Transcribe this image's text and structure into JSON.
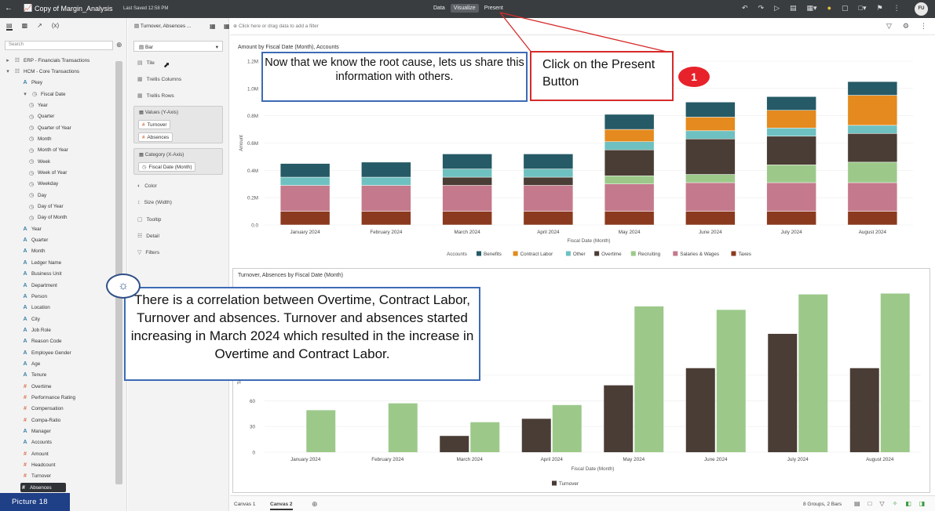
{
  "topbar": {
    "back_icon": "back-arrow-icon",
    "title": "Copy of Margin_Analysis",
    "saved": "Last Saved 12:58 PM",
    "modes": [
      "Data",
      "Visualize",
      "Present"
    ],
    "active_mode": "Visualize",
    "avatar": "FU"
  },
  "left_panel": {
    "search_placeholder": "Search",
    "items": [
      {
        "label": "ERP - Financials Transactions",
        "type": "folder",
        "level": 0
      },
      {
        "label": "HCM - Core Transactions",
        "type": "folder",
        "level": 0
      },
      {
        "label": "Pkey",
        "type": "attr",
        "level": 1
      },
      {
        "label": "Fiscal Date",
        "type": "time",
        "level": 1
      },
      {
        "label": "Year",
        "type": "time",
        "level": 2
      },
      {
        "label": "Quarter",
        "type": "time",
        "level": 2
      },
      {
        "label": "Quarter of Year",
        "type": "time",
        "level": 2
      },
      {
        "label": "Month",
        "type": "time",
        "level": 2
      },
      {
        "label": "Month of Year",
        "type": "time",
        "level": 2
      },
      {
        "label": "Week",
        "type": "time",
        "level": 2
      },
      {
        "label": "Week of Year",
        "type": "time",
        "level": 2
      },
      {
        "label": "Weekday",
        "type": "time",
        "level": 2
      },
      {
        "label": "Day",
        "type": "time",
        "level": 2
      },
      {
        "label": "Day of Year",
        "type": "time",
        "level": 2
      },
      {
        "label": "Day of Month",
        "type": "time",
        "level": 2
      },
      {
        "label": "Year",
        "type": "attr",
        "level": 1
      },
      {
        "label": "Quarter",
        "type": "attr",
        "level": 1
      },
      {
        "label": "Month",
        "type": "attr",
        "level": 1
      },
      {
        "label": "Ledger Name",
        "type": "attr",
        "level": 1
      },
      {
        "label": "Business Unit",
        "type": "attr",
        "level": 1
      },
      {
        "label": "Department",
        "type": "attr",
        "level": 1
      },
      {
        "label": "Person",
        "type": "attr",
        "level": 1
      },
      {
        "label": "Location",
        "type": "attr",
        "level": 1
      },
      {
        "label": "City",
        "type": "attr",
        "level": 1
      },
      {
        "label": "Job Role",
        "type": "attr",
        "level": 1
      },
      {
        "label": "Reason Code",
        "type": "attr",
        "level": 1
      },
      {
        "label": "Employee Gender",
        "type": "attr",
        "level": 1
      },
      {
        "label": "Age",
        "type": "attr",
        "level": 1
      },
      {
        "label": "Tenure",
        "type": "attr",
        "level": 1
      },
      {
        "label": "Overtime",
        "type": "meas",
        "level": 1
      },
      {
        "label": "Performance Rating",
        "type": "meas",
        "level": 1
      },
      {
        "label": "Compensation",
        "type": "meas",
        "level": 1
      },
      {
        "label": "Compa-Ratio",
        "type": "meas",
        "level": 1
      },
      {
        "label": "Manager",
        "type": "attr",
        "level": 1
      },
      {
        "label": "Accounts",
        "type": "attr",
        "level": 1
      },
      {
        "label": "Amount",
        "type": "meas",
        "level": 1
      },
      {
        "label": "Headcount",
        "type": "meas",
        "level": 1
      },
      {
        "label": "Turnover",
        "type": "meas",
        "level": 1
      },
      {
        "label": "Absences",
        "type": "meas",
        "level": 1,
        "selected": true
      }
    ]
  },
  "grammar": {
    "header": "Turnover, Absences ...",
    "viz_type": "Bar",
    "tile": "Tile",
    "trellis_columns": "Trellis Columns",
    "trellis_rows": "Trellis Rows",
    "values_title": "Values (Y-Axis)",
    "values": [
      "Turnover",
      "Absences"
    ],
    "category_title": "Category (X-Axis)",
    "category": "Fiscal Date (Month)",
    "color": "Color",
    "size": "Size (Width)",
    "tooltip": "Tooltip",
    "detail": "Detail",
    "filters": "Filters"
  },
  "filter_bar": {
    "placeholder": "Click here or drag data to add a filter"
  },
  "chart1": {
    "chart_data": {
      "type": "bar",
      "stacked": true,
      "title": "Amount by Fiscal Date (Month), Accounts",
      "xlabel": "Fiscal Date (Month)",
      "ylabel": "Amount",
      "ylim": [
        0,
        1200000
      ],
      "yticks": [
        "0.0",
        "0.2M",
        "0.4M",
        "0.6M",
        "0.8M",
        "1.0M",
        "1.2M"
      ],
      "legend_title": "Accounts",
      "legend_position": "bottom",
      "categories": [
        "January 2024",
        "February 2024",
        "March 2024",
        "April 2024",
        "May 2024",
        "June 2024",
        "July 2024",
        "August 2024"
      ],
      "series": [
        {
          "name": "Taxes",
          "color": "#8b3a1f",
          "values": [
            100000,
            100000,
            100000,
            100000,
            100000,
            100000,
            100000,
            100000
          ]
        },
        {
          "name": "Salaries & Wages",
          "color": "#c47a8c",
          "values": [
            190000,
            190000,
            190000,
            190000,
            200000,
            210000,
            210000,
            210000
          ]
        },
        {
          "name": "Recruiting",
          "color": "#9cc98a",
          "values": [
            0,
            0,
            0,
            0,
            60000,
            60000,
            130000,
            150000
          ]
        },
        {
          "name": "Overtime",
          "color": "#4a3d35",
          "values": [
            0,
            0,
            60000,
            60000,
            190000,
            260000,
            210000,
            210000
          ]
        },
        {
          "name": "Other",
          "color": "#6ec1c0",
          "values": [
            60000,
            60000,
            60000,
            60000,
            60000,
            60000,
            60000,
            60000
          ]
        },
        {
          "name": "Contract Labor",
          "color": "#e48a1e",
          "values": [
            0,
            0,
            0,
            0,
            90000,
            100000,
            130000,
            220000
          ]
        },
        {
          "name": "Benefits",
          "color": "#255a66",
          "values": [
            100000,
            110000,
            110000,
            110000,
            110000,
            110000,
            100000,
            100000
          ]
        }
      ],
      "legend_order": [
        "Benefits",
        "Contract Labor",
        "Other",
        "Overtime",
        "Recruiting",
        "Salaries & Wages",
        "Taxes"
      ]
    }
  },
  "chart2": {
    "chart_data": {
      "type": "bar",
      "title": "Turnover, Absences by Fiscal Date (Month)",
      "xlabel": "Fiscal Date (Month)",
      "ylabel": "Turnover",
      "ylim": [
        0,
        180
      ],
      "yticks": [
        "0",
        "30",
        "60",
        "90"
      ],
      "legend_position": "bottom",
      "categories": [
        "January 2024",
        "February 2024",
        "March 2024",
        "April 2024",
        "May 2024",
        "June 2024",
        "July 2024",
        "August 2024"
      ],
      "series": [
        {
          "name": "Turnover",
          "color": "#4a3d35",
          "values": [
            0,
            0,
            19,
            39,
            78,
            98,
            138,
            98
          ]
        },
        {
          "name": "Absences",
          "color": "#9cc98a",
          "values": [
            49,
            57,
            35,
            55,
            170,
            166,
            184,
            185
          ]
        }
      ],
      "legend_entries": [
        "Turnover"
      ]
    }
  },
  "bottom_bar": {
    "tabs": [
      "Canvas 1",
      "Canvas 2"
    ],
    "active_tab": "Canvas 2",
    "groups": "8 Groups, 2 Bars"
  },
  "callouts": {
    "root_cause": "Now that we know the root cause, lets us share this information with others.",
    "present": "Click on the Present Button",
    "step_number": "1",
    "insight": "There is a correlation between Overtime, Contract Labor, Turnover and absences. Turnover and absences started increasing in March 2024 which resulted in the increase in Overtime and  Contract Labor.",
    "picture_label": "Picture  18"
  }
}
